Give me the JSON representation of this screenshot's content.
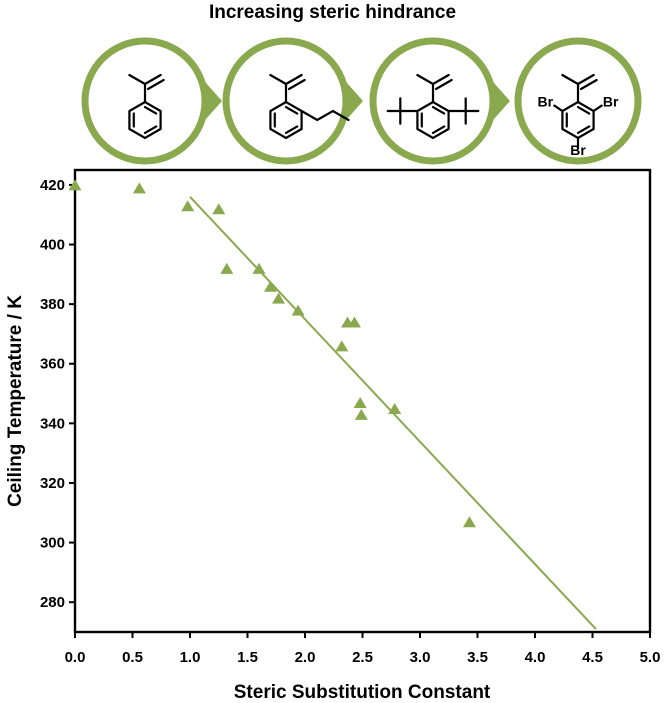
{
  "header": {
    "title": "Increasing steric hindrance",
    "accent_color": "#8aa94e",
    "molecules": [
      {
        "name": "alpha-methylstyrene",
        "labels": []
      },
      {
        "name": "2-propyl-alpha-methylstyrene",
        "labels": []
      },
      {
        "name": "2,6-di-tert-butyl-alpha-methylstyrene",
        "labels": []
      },
      {
        "name": "2,4,6-tribromo-alpha-methylstyrene",
        "labels": [
          "Br",
          "Br",
          "Br"
        ]
      }
    ]
  },
  "chart_data": {
    "type": "scatter",
    "xlabel": "Steric Substitution Constant",
    "ylabel": "Ceiling Temperature / K",
    "xlim": [
      0,
      5
    ],
    "ylim": [
      270,
      425
    ],
    "xticks": [
      0,
      0.5,
      1,
      1.5,
      2,
      2.5,
      3,
      3.5,
      4,
      4.5,
      5
    ],
    "xtick_labels": [
      "0.0",
      "0.5",
      "1.0",
      "1.5",
      "2.0",
      "2.5",
      "3.0",
      "3.5",
      "4.0",
      "4.5",
      "5.0"
    ],
    "yticks": [
      280,
      300,
      320,
      340,
      360,
      380,
      400,
      420
    ],
    "ytick_labels": [
      "280",
      "300",
      "320",
      "340",
      "360",
      "380",
      "400",
      "420"
    ],
    "grid": false,
    "marker": "triangle",
    "color": "#8aa94e",
    "points": [
      {
        "x": 0.0,
        "y": 420
      },
      {
        "x": 0.56,
        "y": 419
      },
      {
        "x": 0.98,
        "y": 413
      },
      {
        "x": 1.25,
        "y": 412
      },
      {
        "x": 1.32,
        "y": 392
      },
      {
        "x": 1.6,
        "y": 392
      },
      {
        "x": 1.7,
        "y": 386
      },
      {
        "x": 1.77,
        "y": 382
      },
      {
        "x": 1.94,
        "y": 378
      },
      {
        "x": 2.32,
        "y": 366
      },
      {
        "x": 2.37,
        "y": 374
      },
      {
        "x": 2.43,
        "y": 374
      },
      {
        "x": 2.48,
        "y": 347
      },
      {
        "x": 2.49,
        "y": 343
      },
      {
        "x": 2.78,
        "y": 345
      },
      {
        "x": 3.43,
        "y": 307
      }
    ],
    "fit_line": {
      "x": [
        1.0,
        4.53
      ],
      "y": [
        416,
        271
      ]
    }
  }
}
